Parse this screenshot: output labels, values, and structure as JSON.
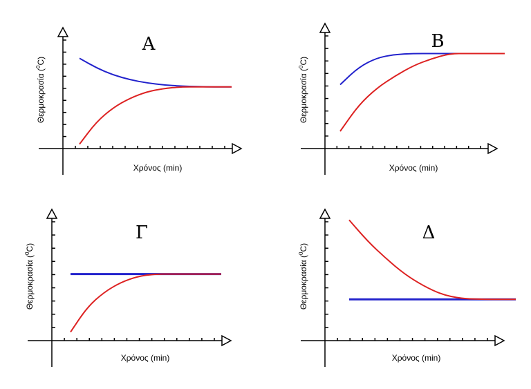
{
  "chart_data": [
    {
      "type": "line",
      "panel_label": "A",
      "xlabel": "Χρόνος (min)",
      "ylabel": {
        "pre": "Θερμοκρασία (",
        "sup": "0",
        "post": "C)"
      },
      "xlim": [
        0,
        10
      ],
      "ylim": [
        0,
        10
      ],
      "series": [
        {
          "color": "#2222cc",
          "x": [
            1,
            2,
            3,
            4,
            5,
            6,
            7,
            8,
            9,
            10
          ],
          "y": [
            7.2,
            6.6,
            6.15,
            5.85,
            5.65,
            5.52,
            5.45,
            5.42,
            5.4,
            5.4
          ]
        },
        {
          "color": "#dd2222",
          "x": [
            1,
            2,
            3,
            4,
            5,
            6,
            7,
            8,
            9,
            10
          ],
          "y": [
            1.8,
            3.2,
            4.1,
            4.7,
            5.1,
            5.3,
            5.4,
            5.4,
            5.4,
            5.4
          ]
        }
      ]
    },
    {
      "type": "line",
      "panel_label": "B",
      "xlabel": "Χρόνος (min)",
      "ylabel": {
        "pre": "Θερμοκρασία (",
        "sup": "0",
        "post": "C)"
      },
      "xlim": [
        0,
        10
      ],
      "ylim": [
        0,
        10
      ],
      "series": [
        {
          "color": "#2222cc",
          "x": [
            1,
            2,
            3,
            4,
            5,
            6,
            7,
            8,
            9,
            10
          ],
          "y": [
            5.3,
            6.3,
            6.85,
            7.05,
            7.1,
            7.1,
            7.1,
            7.1,
            7.1,
            7.1
          ]
        },
        {
          "color": "#dd2222",
          "x": [
            1,
            2,
            3,
            4,
            5,
            6,
            7,
            8,
            9,
            10
          ],
          "y": [
            2.6,
            4.1,
            5.1,
            5.8,
            6.4,
            6.8,
            7.1,
            7.1,
            7.1,
            7.1
          ]
        }
      ]
    },
    {
      "type": "line",
      "panel_label": "Γ",
      "xlabel": "Χρόνος (min)",
      "ylabel": {
        "pre": "Θερμοκρασία (",
        "sup": "0",
        "post": "C)"
      },
      "xlim": [
        0,
        10
      ],
      "ylim": [
        0,
        10
      ],
      "series": [
        {
          "color": "#2222cc",
          "x": [
            1,
            10
          ],
          "y": [
            6.6,
            6.6
          ]
        },
        {
          "color": "#dd2222",
          "x": [
            1,
            2,
            3,
            4,
            5,
            6,
            7,
            10
          ],
          "y": [
            3.1,
            4.6,
            5.5,
            6.1,
            6.45,
            6.6,
            6.6,
            6.6
          ]
        }
      ]
    },
    {
      "type": "line",
      "panel_label": "Δ",
      "xlabel": "Χρόνος (min)",
      "ylabel": {
        "pre": "Θερμοκρασία (",
        "sup": "0",
        "post": "C)"
      },
      "xlim": [
        0,
        10
      ],
      "ylim": [
        0,
        10
      ],
      "series": [
        {
          "color": "#2222cc",
          "x": [
            1,
            10
          ],
          "y": [
            4.1,
            4.1
          ]
        },
        {
          "color": "#dd2222",
          "x": [
            1,
            2,
            3,
            4,
            5,
            6,
            7,
            8,
            10
          ],
          "y": [
            8.2,
            7.1,
            6.2,
            5.4,
            4.8,
            4.35,
            4.15,
            4.1,
            4.1
          ]
        }
      ]
    }
  ]
}
